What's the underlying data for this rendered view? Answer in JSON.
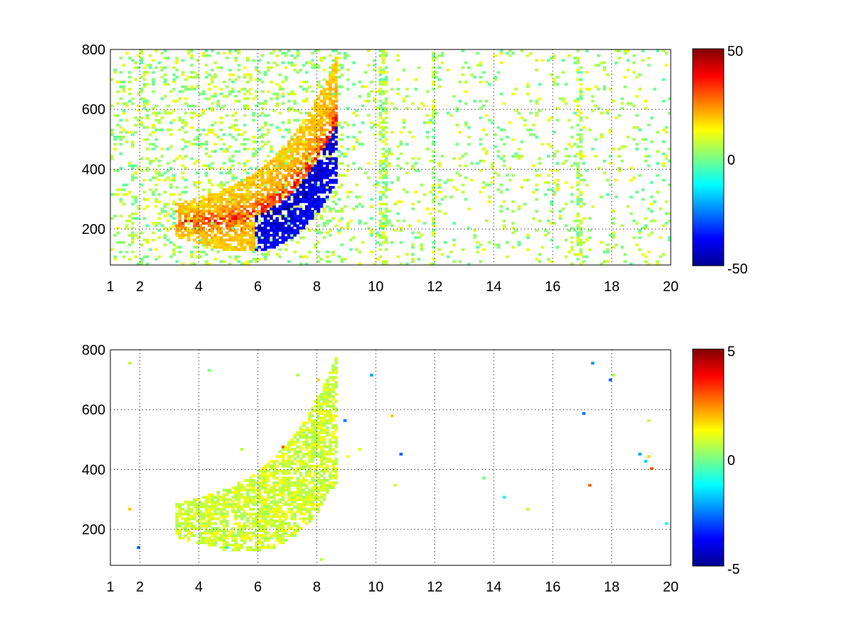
{
  "chart_data": [
    {
      "type": "heatmap",
      "title": "",
      "xlabel": "",
      "ylabel": "",
      "xlim": [
        1,
        20
      ],
      "ylim": [
        80,
        800
      ],
      "x_ticks": [
        1,
        2,
        4,
        6,
        8,
        10,
        12,
        14,
        16,
        18,
        20
      ],
      "y_ticks": [
        200,
        400,
        600,
        800
      ],
      "grid": true,
      "colormap": "jet",
      "colorbar": {
        "min": -50,
        "max": 50,
        "ticks": [
          50,
          0,
          -50
        ]
      },
      "features": [
        {
          "name": "positive ridge",
          "x_start": 3.5,
          "x_end": 8.6,
          "y_start": 225,
          "y_end": 560,
          "value": 40
        },
        {
          "name": "negative ridge",
          "x_start": 5.8,
          "x_end": 8.6,
          "y_start": 260,
          "y_end": 450,
          "value": -45
        }
      ]
    },
    {
      "type": "heatmap",
      "title": "",
      "xlabel": "",
      "ylabel": "",
      "xlim": [
        1,
        20
      ],
      "ylim": [
        80,
        800
      ],
      "x_ticks": [
        1,
        2,
        4,
        6,
        8,
        10,
        12,
        14,
        16,
        18,
        20
      ],
      "y_ticks": [
        200,
        400,
        600,
        800
      ],
      "grid": true,
      "colormap": "jet",
      "colorbar": {
        "min": -5,
        "max": 5,
        "ticks": [
          5,
          0,
          -5
        ]
      },
      "features": [
        {
          "name": "near-zero band",
          "x_start": 3.5,
          "x_end": 8.6,
          "y_start": 225,
          "y_end": 560,
          "value": 0.8
        }
      ]
    }
  ],
  "text_colors": {
    "axis": "#000000",
    "grid": "#000000"
  }
}
